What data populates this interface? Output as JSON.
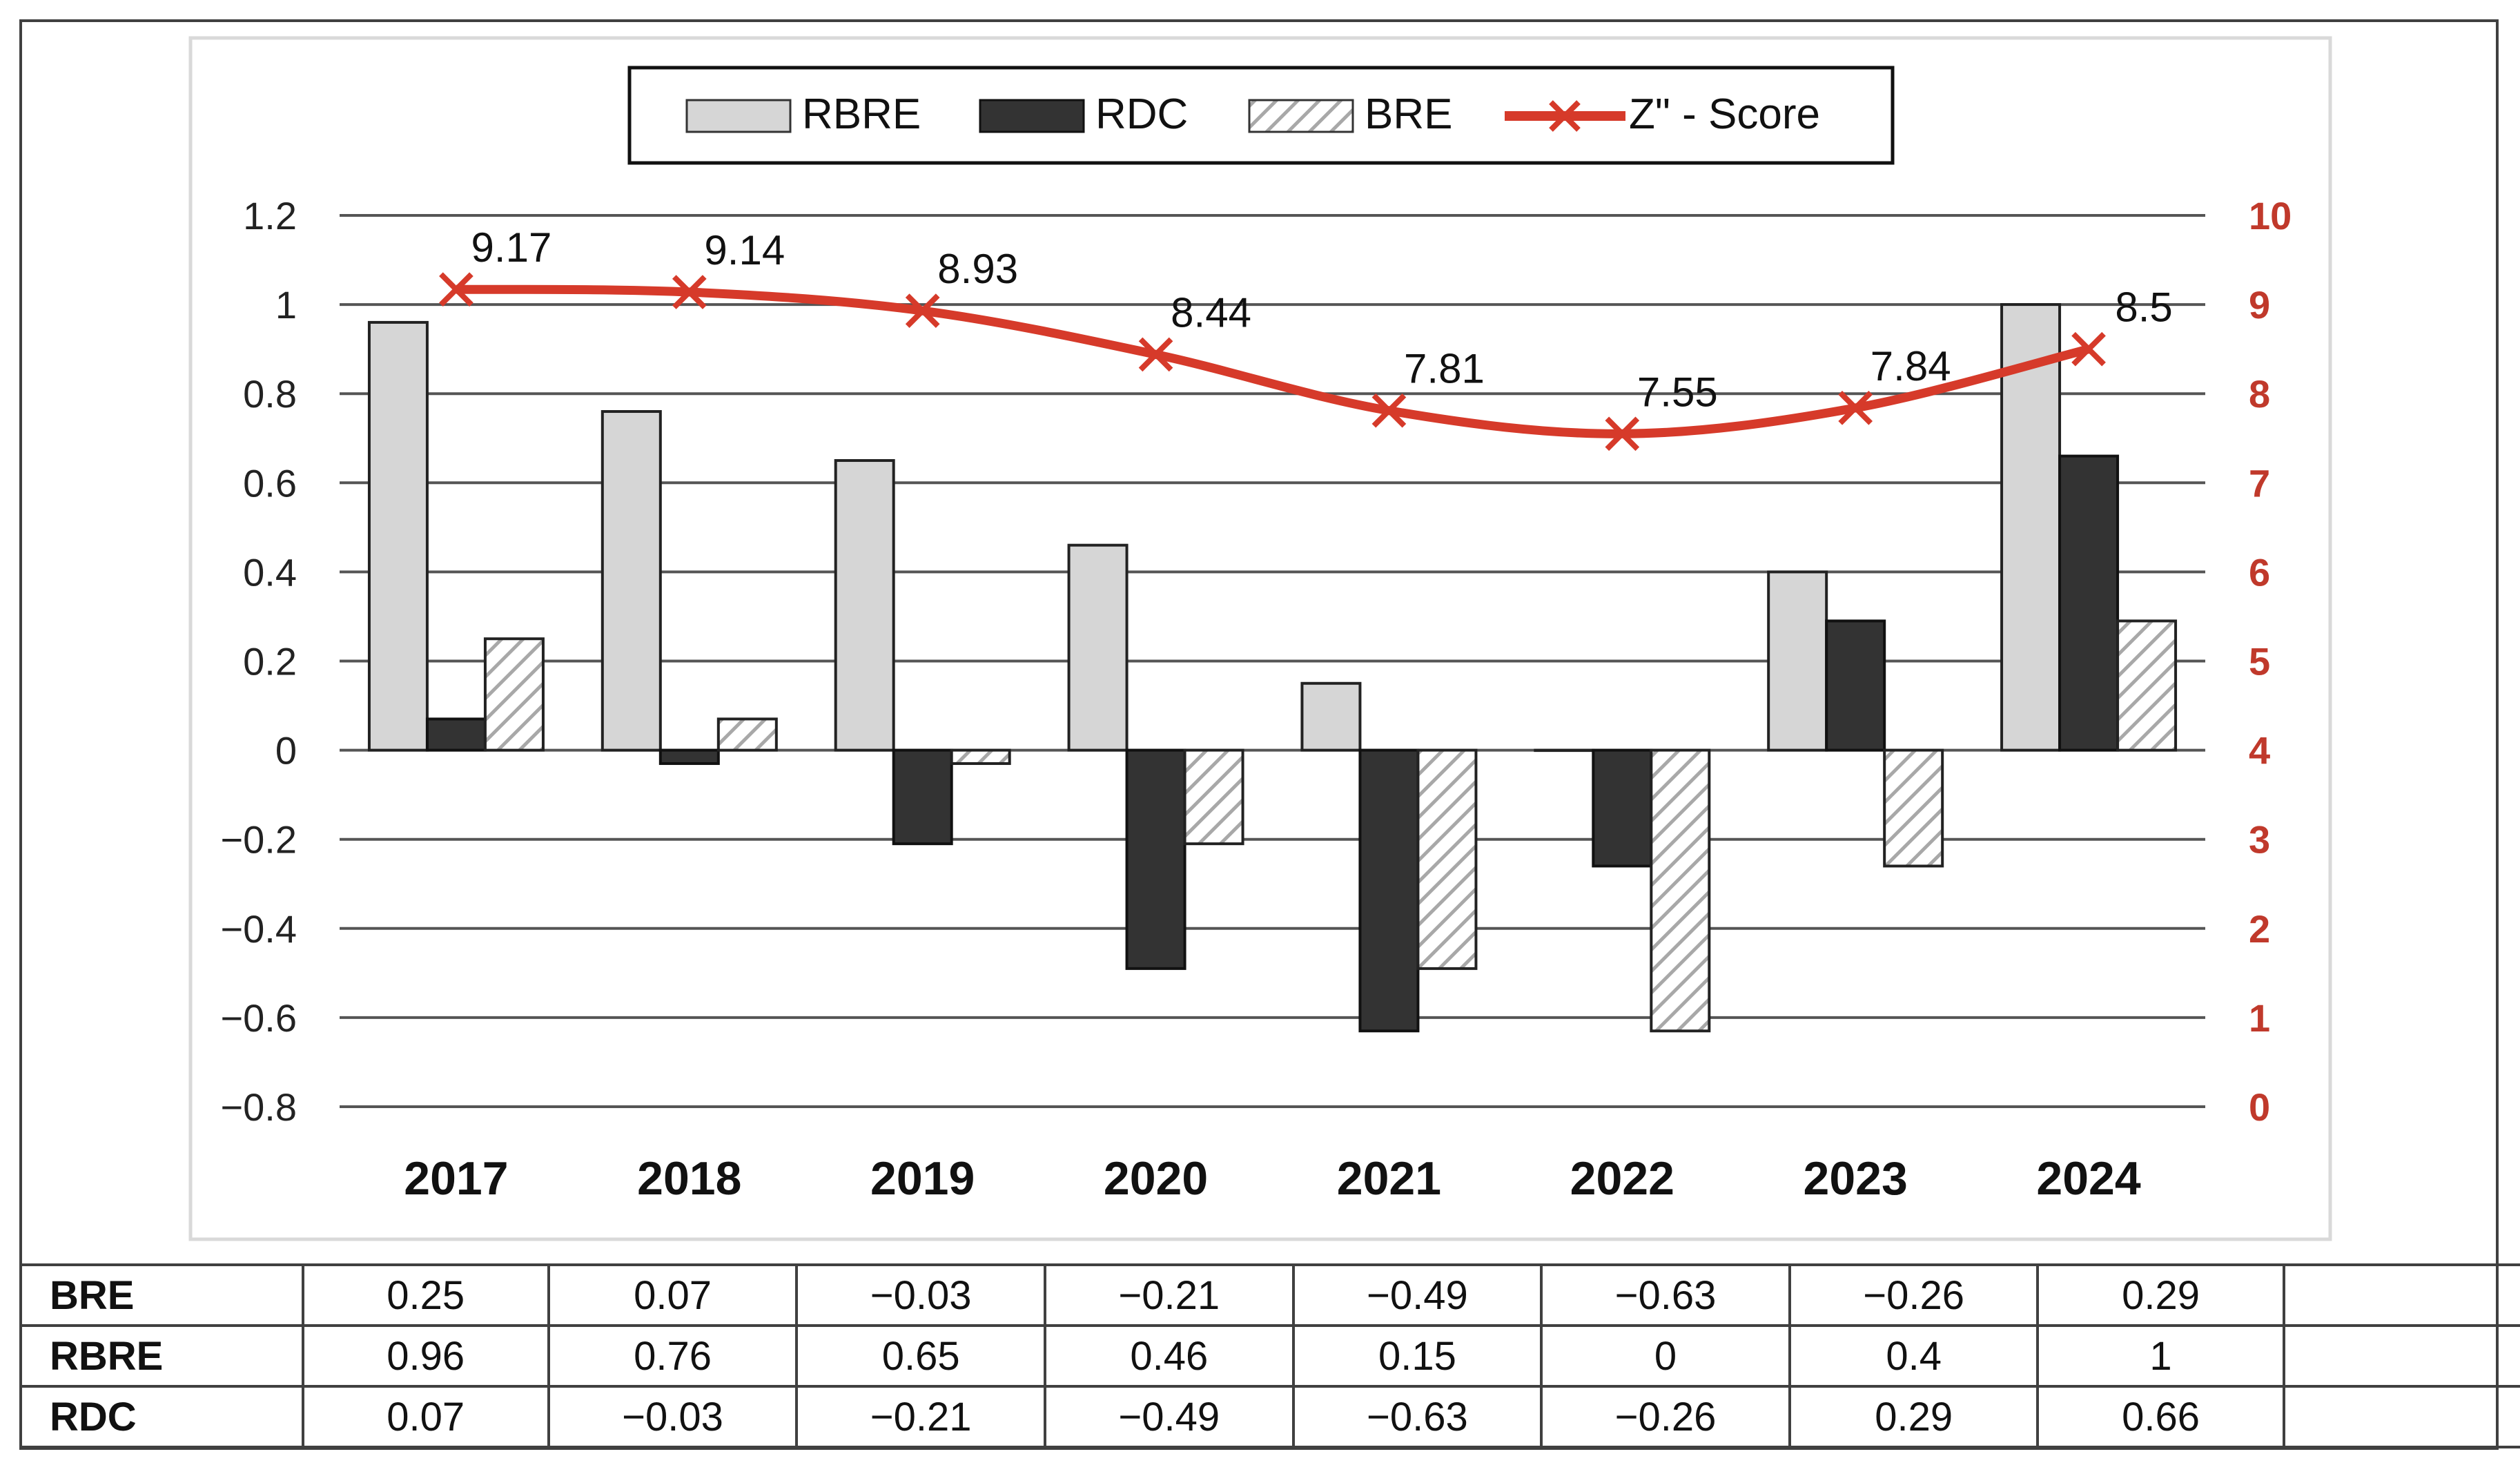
{
  "chart_data": {
    "type": "bar",
    "categories": [
      "2017",
      "2018",
      "2019",
      "2020",
      "2021",
      "2022",
      "2023",
      "2024"
    ],
    "series": [
      {
        "name": "RBRE",
        "axis": "left",
        "values": [
          0.96,
          0.76,
          0.65,
          0.46,
          0.15,
          0,
          0.4,
          1
        ],
        "style": "light"
      },
      {
        "name": "RDC",
        "axis": "left",
        "values": [
          0.07,
          -0.03,
          -0.21,
          -0.49,
          -0.63,
          -0.26,
          0.29,
          0.66
        ],
        "style": "dark"
      },
      {
        "name": "BRE",
        "axis": "left",
        "values": [
          0.25,
          0.07,
          -0.03,
          -0.21,
          -0.49,
          -0.63,
          -0.26,
          0.29
        ],
        "style": "hatched"
      }
    ],
    "line_series": {
      "name": "Z\" - Score",
      "axis": "right",
      "values": [
        9.17,
        9.14,
        8.93,
        8.44,
        7.81,
        7.55,
        7.84,
        8.5
      ],
      "labels": [
        "9.17",
        "9.14",
        "8.93",
        "8.44",
        "7.81",
        "7.55",
        "7.84",
        "8.5"
      ]
    },
    "left_axis": {
      "ylim": [
        -0.8,
        1.2
      ],
      "ticks": [
        1.2,
        1,
        0.8,
        0.6,
        0.4,
        0.2,
        0,
        -0.2,
        -0.4,
        -0.6,
        -0.8
      ],
      "tick_labels": [
        "1.2",
        "1",
        "0.8",
        "0.6",
        "0.4",
        "0.2",
        "0",
        "−0.2",
        "−0.4",
        "−0.6",
        "−0.8"
      ]
    },
    "right_axis": {
      "ylim": [
        0,
        10
      ],
      "ticks": [
        10,
        9,
        8,
        7,
        6,
        5,
        4,
        3,
        2,
        1,
        0
      ],
      "tick_labels": [
        "10",
        "9",
        "8",
        "7",
        "6",
        "5",
        "4",
        "3",
        "2",
        "1",
        "0"
      ]
    },
    "grid": true,
    "legend_position": "top-center",
    "legend": [
      "RBRE",
      "RDC",
      "BRE",
      "Z\" - Score"
    ],
    "colors": {
      "light": "#d6d6d6",
      "dark": "#333333",
      "hatched_stroke": "#a8a8a8",
      "line": "#d63a2a",
      "right_axis_text": "#c0392b",
      "grid": "#555555"
    }
  },
  "table": {
    "rows": [
      {
        "label": "BRE",
        "values": [
          "0.25",
          "0.07",
          "−0.03",
          "−0.21",
          "−0.49",
          "−0.63",
          "−0.26",
          "0.29"
        ]
      },
      {
        "label": "RBRE",
        "values": [
          "0.96",
          "0.76",
          "0.65",
          "0.46",
          "0.15",
          "0",
          "0.4",
          "1"
        ]
      },
      {
        "label": "RDC",
        "values": [
          "0.07",
          "−0.03",
          "−0.21",
          "−0.49",
          "−0.63",
          "−0.26",
          "0.29",
          "0.66"
        ]
      }
    ]
  }
}
